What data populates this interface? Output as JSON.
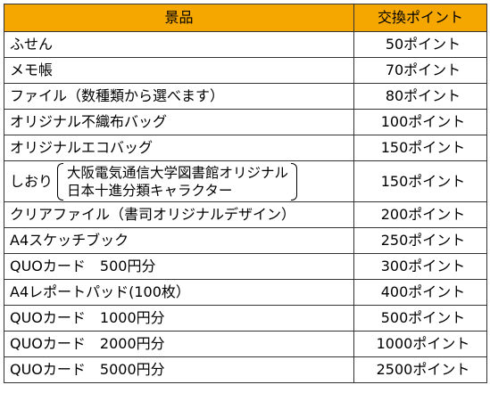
{
  "header": {
    "prize": "景品",
    "points": "交換ポイント"
  },
  "rows": [
    {
      "name": "ふせん",
      "points": "50ポイント"
    },
    {
      "name": "メモ帳",
      "points": "70ポイント"
    },
    {
      "name": "ファイル（数種類から選べます）",
      "points": "80ポイント"
    },
    {
      "name": "オリジナル不織布バッグ",
      "points": "100ポイント"
    },
    {
      "name": "オリジナルエコバッグ",
      "points": "150ポイント"
    },
    {
      "name": "しおり",
      "line1": "大阪電気通信大学図書館オリジナル",
      "line2": "日本十進分類キャラクター",
      "points": "150ポイント"
    },
    {
      "name": "クリアファイル（書司オリジナルデザイン）",
      "points": "200ポイント"
    },
    {
      "name": "A4スケッチブック",
      "points": "250ポイント"
    },
    {
      "name": "QUOカード　500円分",
      "points": "300ポイント"
    },
    {
      "name": "A4レポートパッド(100枚）",
      "points": "400ポイント"
    },
    {
      "name": "QUOカード　1000円分",
      "points": "500ポイント"
    },
    {
      "name": "QUOカード　2000円分",
      "points": "1000ポイント"
    },
    {
      "name": "QUOカード　5000円分",
      "points": "2500ポイント"
    }
  ]
}
